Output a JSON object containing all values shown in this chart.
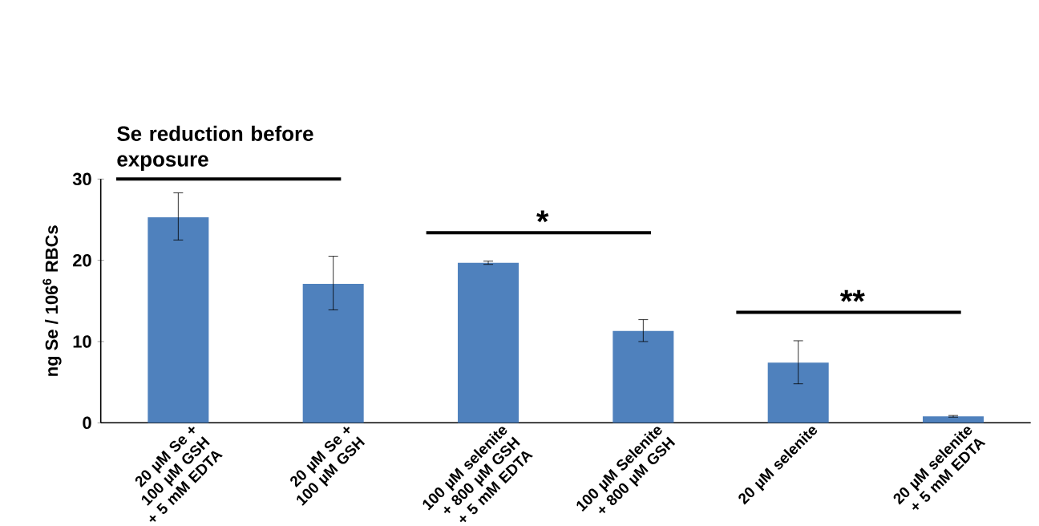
{
  "chart_data": {
    "type": "bar",
    "ylabel": "ng Se / 106$^{6}$ RBCs",
    "categories": [
      "20 µM Se + 100 µM GSH + 5 mM EDTA",
      "20 µM Se + 100 µM GSH",
      "100 µM selenite + 800 µM GSH + 5 mM EDTA",
      "100 µM Selenite + 800 µM GSH",
      "20 µM selenite",
      "20 µM selenite + 5 mM EDTA"
    ],
    "values": [
      25.3,
      17.1,
      19.7,
      11.3,
      7.4,
      0.8
    ],
    "errors": [
      [
        22.5,
        28.3
      ],
      [
        13.9,
        20.5
      ],
      [
        19.5,
        19.9
      ],
      [
        10.0,
        12.7
      ],
      [
        4.8,
        10.1
      ],
      [
        0.7,
        0.9
      ]
    ],
    "color": "#4f81bd",
    "ylim": [
      0,
      30
    ],
    "yticks": [
      0,
      10,
      20,
      30
    ],
    "annotations": [
      "Se reduction before exposure",
      "*",
      "**"
    ]
  }
}
